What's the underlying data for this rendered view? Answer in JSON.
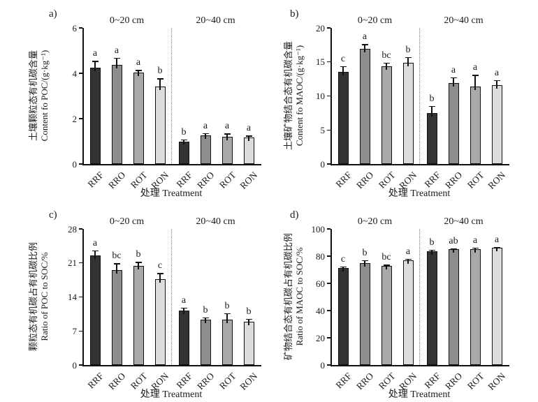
{
  "figure": {
    "treatments": [
      "RRF",
      "RRO",
      "ROT",
      "RON"
    ],
    "depth_groups": [
      "0~20 cm",
      "20~40 cm"
    ],
    "bar_colors": [
      "#333333",
      "#8d8d8d",
      "#a9a9a9",
      "#dcdcdc"
    ],
    "axis_color": "#111111"
  },
  "chart_data": [
    {
      "type": "bar",
      "panel": "a)",
      "ylabel_cn": "土壤颗粒态有机碳含量",
      "ylabel_en": "Content fo POC/(g·kg⁻¹)",
      "xlabel": "处理 Treatment",
      "ylim": [
        0,
        6
      ],
      "yticks": [
        0,
        2,
        4,
        6
      ],
      "groups": [
        {
          "label": "0~20 cm",
          "categories": [
            "RRF",
            "RRO",
            "ROT",
            "RON"
          ],
          "values": [
            4.26,
            4.36,
            4.02,
            3.42
          ],
          "errors": [
            0.28,
            0.33,
            0.12,
            0.35
          ],
          "letters": [
            "a",
            "a",
            "a",
            "b"
          ]
        },
        {
          "label": "20~40 cm",
          "categories": [
            "RRF",
            "RRO",
            "ROT",
            "RON"
          ],
          "values": [
            1.0,
            1.26,
            1.21,
            1.17
          ],
          "errors": [
            0.08,
            0.1,
            0.13,
            0.08
          ],
          "letters": [
            "b",
            "a",
            "a",
            "a"
          ]
        }
      ]
    },
    {
      "type": "bar",
      "panel": "b)",
      "ylabel_cn": "土壤矿物结合态有机碳含量",
      "ylabel_en": "Content fo MAOC/(g·kg⁻¹)",
      "xlabel": "处理 Treatment",
      "ylim": [
        0,
        20
      ],
      "yticks": [
        0,
        5,
        10,
        15,
        20
      ],
      "groups": [
        {
          "label": "0~20 cm",
          "categories": [
            "RRF",
            "RRO",
            "ROT",
            "RON"
          ],
          "values": [
            13.5,
            16.9,
            14.4,
            14.9
          ],
          "errors": [
            0.9,
            0.7,
            0.5,
            0.8
          ],
          "letters": [
            "c",
            "a",
            "bc",
            "b"
          ]
        },
        {
          "label": "20~40 cm",
          "categories": [
            "RRF",
            "RRO",
            "ROT",
            "RON"
          ],
          "values": [
            7.5,
            11.9,
            11.4,
            11.6
          ],
          "errors": [
            1.0,
            0.8,
            1.7,
            0.7
          ],
          "letters": [
            "b",
            "a",
            "a",
            "a"
          ]
        }
      ]
    },
    {
      "type": "bar",
      "panel": "c)",
      "ylabel_cn": "颗粒态有机碳占有机碳比例",
      "ylabel_en": "Ratio of POC to SOC/%",
      "xlabel": "处理 Treatment",
      "ylim": [
        0,
        28
      ],
      "yticks": [
        0,
        7,
        14,
        21,
        28
      ],
      "groups": [
        {
          "label": "0~20 cm",
          "categories": [
            "RRF",
            "RRO",
            "ROT",
            "RON"
          ],
          "values": [
            22.6,
            19.5,
            20.4,
            17.7
          ],
          "errors": [
            1.0,
            1.4,
            0.8,
            1.2
          ],
          "letters": [
            "a",
            "bc",
            "b",
            "c"
          ]
        },
        {
          "label": "20~40 cm",
          "categories": [
            "RRF",
            "RRO",
            "ROT",
            "RON"
          ],
          "values": [
            11.2,
            9.3,
            9.4,
            8.9
          ],
          "errors": [
            0.6,
            0.5,
            1.2,
            0.6
          ],
          "letters": [
            "a",
            "b",
            "b",
            "b"
          ]
        }
      ]
    },
    {
      "type": "bar",
      "panel": "d)",
      "ylabel_cn": "矿物结合态有机碳占有机碳比例",
      "ylabel_en": "Ratio of MAOC to SOC/%",
      "xlabel": "处理 Treatment",
      "ylim": [
        0,
        100
      ],
      "yticks": [
        0,
        20,
        40,
        60,
        80,
        100
      ],
      "groups": [
        {
          "label": "0~20 cm",
          "categories": [
            "RRF",
            "RRO",
            "ROT",
            "RON"
          ],
          "values": [
            71.5,
            74.8,
            72.8,
            76.8
          ],
          "errors": [
            1.0,
            2.2,
            0.8,
            1.3
          ],
          "letters": [
            "c",
            "b",
            "bc",
            "a"
          ]
        },
        {
          "label": "20~40 cm",
          "categories": [
            "RRF",
            "RRO",
            "ROT",
            "RON"
          ],
          "values": [
            83.5,
            85.0,
            85.0,
            86.0
          ],
          "errors": [
            1.3,
            0.7,
            1.2,
            0.6
          ],
          "letters": [
            "b",
            "ab",
            "a",
            "a"
          ]
        }
      ]
    }
  ]
}
